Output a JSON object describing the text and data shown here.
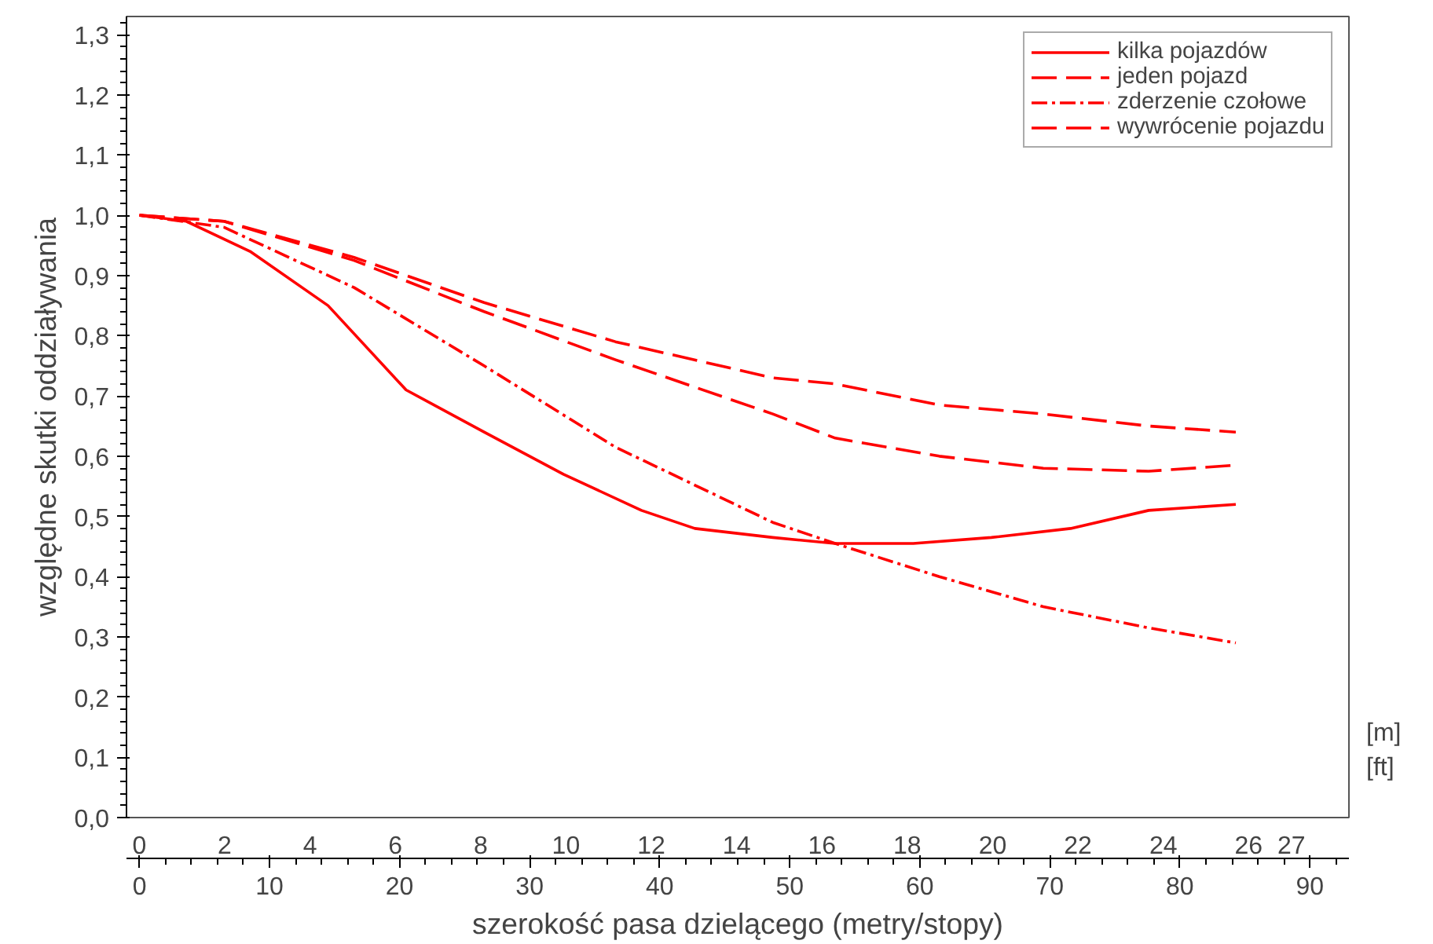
{
  "chart_data": {
    "type": "line",
    "xlabel": "szerokość pasa dzielącego (metry/stopy)",
    "ylabel": "względne skutki oddziaływania",
    "xlim": [
      -1,
      93
    ],
    "xticks": [
      0,
      10,
      20,
      30,
      40,
      50,
      60,
      70,
      80,
      90
    ],
    "x2lim": [
      -0.3,
      28.35
    ],
    "x2ticks": [
      0,
      2,
      4,
      6,
      8,
      10,
      12,
      14,
      16,
      18,
      20,
      22,
      24,
      26,
      27
    ],
    "ylim": [
      0,
      1.33
    ],
    "yticks": [
      {
        "value": 0,
        "label": "0,0"
      },
      {
        "value": 0.1,
        "label": "0,1"
      },
      {
        "value": 0.2,
        "label": "0,2"
      },
      {
        "value": 0.3,
        "label": "0,3"
      },
      {
        "value": 0.4,
        "label": "0,4"
      },
      {
        "value": 0.5,
        "label": "0,5"
      },
      {
        "value": 0.6,
        "label": "0,6"
      },
      {
        "value": 0.7,
        "label": "0,7"
      },
      {
        "value": 0.8,
        "label": "0,8"
      },
      {
        "value": 0.9,
        "label": "0,9"
      },
      {
        "value": 1.0,
        "label": "1,0"
      },
      {
        "value": 1.1,
        "label": "1,1"
      },
      {
        "value": 1.2,
        "label": "1,2"
      },
      {
        "value": 1.3,
        "label": "1,3"
      }
    ],
    "annotations": [
      "[m]",
      "[ft]"
    ],
    "legend": "top right",
    "grid": false,
    "marker": "none",
    "series": [
      {
        "name": "kilka pojazdów",
        "color": "#ff0000",
        "line_style": "solid",
        "x": [
          0,
          3.6,
          8.5,
          14.5,
          20.5,
          26.5,
          32.6,
          38.6,
          42.7,
          48.7,
          53.5,
          59.5,
          65.5,
          71.6,
          77.6,
          84.3
        ],
        "values": [
          1.0,
          0.99,
          0.94,
          0.85,
          0.71,
          0.64,
          0.57,
          0.51,
          0.48,
          0.465,
          0.455,
          0.455,
          0.465,
          0.48,
          0.51,
          0.52
        ]
      },
      {
        "name": "jeden pojazd",
        "color": "#ff0000",
        "line_style": "dashed",
        "x": [
          0,
          6.5,
          16.5,
          26.5,
          36.6,
          48.7,
          53.5,
          61.5,
          69.5,
          77.6,
          84.3
        ],
        "values": [
          1.0,
          0.99,
          0.925,
          0.84,
          0.76,
          0.67,
          0.63,
          0.6,
          0.58,
          0.575,
          0.585
        ]
      },
      {
        "name": "zderzenie czołowe",
        "color": "#ff0000",
        "line_style": "dashdot",
        "x": [
          0,
          6.5,
          16.5,
          26.5,
          36.6,
          48.7,
          53.5,
          61.5,
          69.5,
          77.6,
          84.3
        ],
        "values": [
          1.0,
          0.98,
          0.88,
          0.75,
          0.615,
          0.49,
          0.455,
          0.4,
          0.35,
          0.315,
          0.29
        ]
      },
      {
        "name": "wywrócenie pojazdu",
        "color": "#ff0000",
        "line_style": "dashed",
        "x": [
          0,
          6.5,
          16.5,
          26.5,
          36.6,
          48.7,
          53.5,
          61.5,
          69.5,
          77.6,
          84.3
        ],
        "values": [
          1.0,
          0.99,
          0.93,
          0.855,
          0.79,
          0.73,
          0.72,
          0.685,
          0.67,
          0.65,
          0.64
        ]
      }
    ]
  }
}
